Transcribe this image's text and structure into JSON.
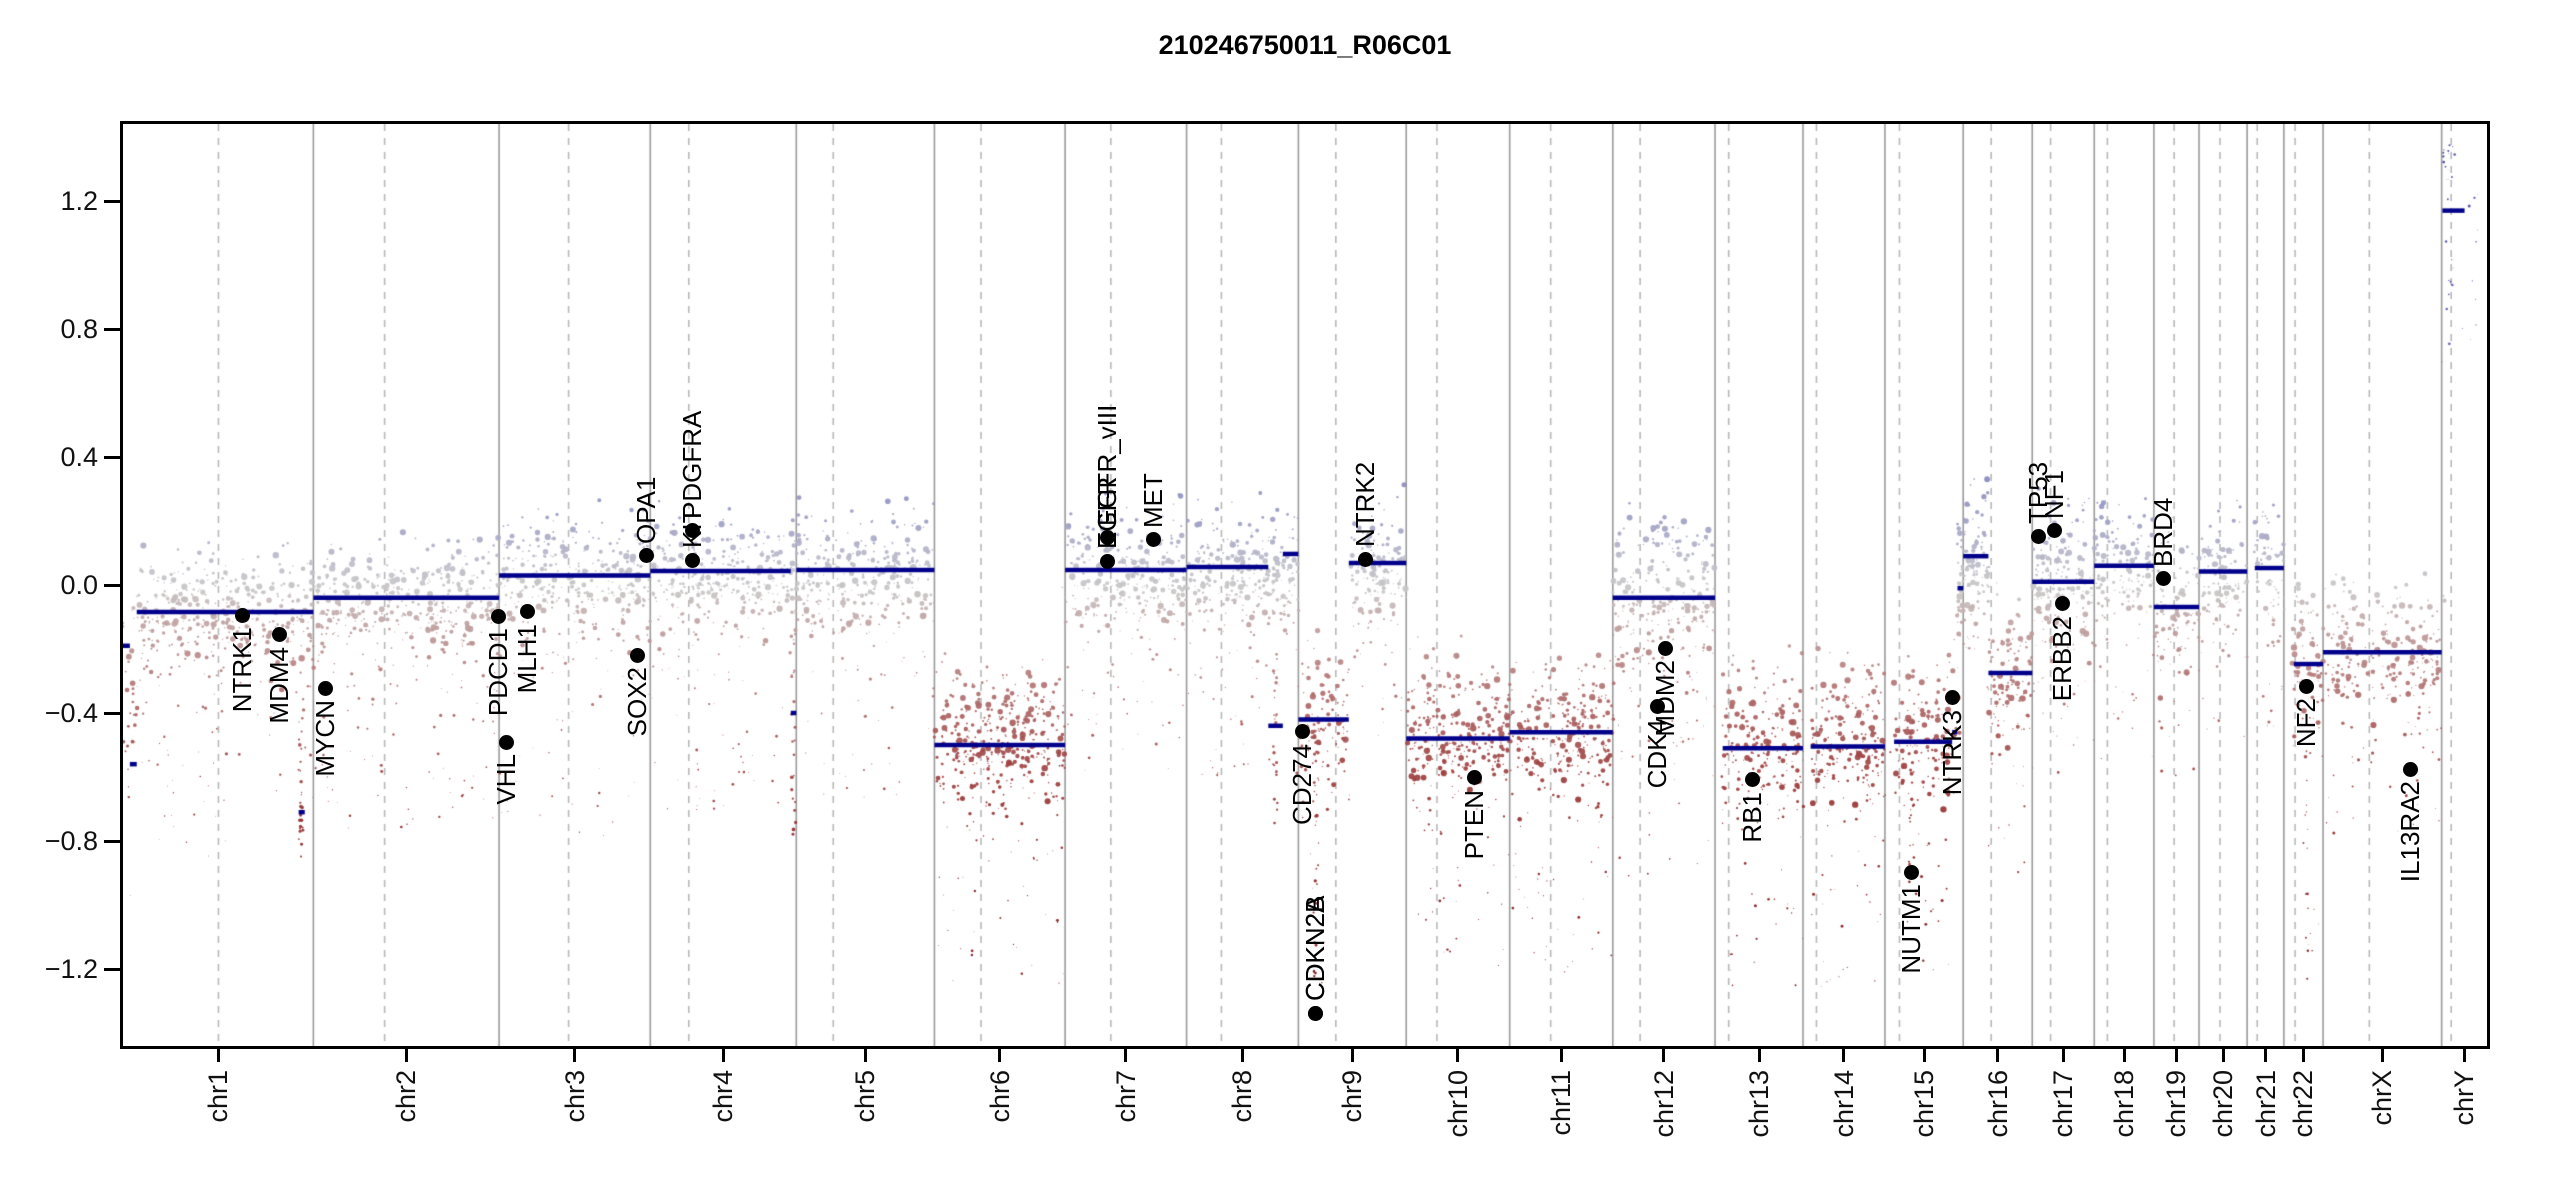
{
  "title": "210246750011_R06C01",
  "colors": {
    "segment": "#00008b",
    "gene_dot": "#000000",
    "boundary_line": "#9a9a9a",
    "centromere_line": "#b8b8b8",
    "plot_border": "#000000",
    "positive_point": "#8486bd",
    "neutral_point": "#c9c7c7",
    "negative_point": "#a04545",
    "deep_negative_point": "#7a1212"
  },
  "y_axis": {
    "ticks": [
      {
        "label": "1.2",
        "value": 1.2
      },
      {
        "label": "0.8",
        "value": 0.8
      },
      {
        "label": "0.4",
        "value": 0.4
      },
      {
        "label": "0.0",
        "value": 0.0
      },
      {
        "label": "-0.4",
        "value": -0.4
      },
      {
        "label": "-0.8",
        "value": -0.8
      },
      {
        "label": "-1.2",
        "value": -1.2
      }
    ],
    "range": [
      -1.44,
      1.44
    ]
  },
  "chart_data": {
    "type": "scatter",
    "title": "210246750011_R06C01",
    "xlabel": "",
    "ylabel": "",
    "ylim": [
      -1.44,
      1.44
    ],
    "grid": false,
    "legend": "none",
    "genome_total_mb": 3095.7,
    "chromosomes": [
      {
        "name": "chr1",
        "length_mb": 249.3,
        "centromere_mb": 125.0,
        "regions": [
          {
            "start_mb": 0,
            "end_mb": 18,
            "level": -0.3,
            "sd": 0.15,
            "up": 0.28,
            "down": 0.9,
            "density": 0.9
          },
          {
            "start_mb": 18,
            "end_mb": 249.3,
            "level": -0.07,
            "sd": 0.09,
            "up": 0.22,
            "down": 0.75,
            "density": 1.0
          }
        ]
      },
      {
        "name": "chr2",
        "length_mb": 243.2,
        "centromere_mb": 93.3,
        "regions": [
          {
            "start_mb": 0,
            "end_mb": 243.2,
            "level": -0.045,
            "sd": 0.09,
            "up": 0.22,
            "down": 0.7,
            "density": 1.0
          }
        ]
      },
      {
        "name": "chr3",
        "length_mb": 198.0,
        "centromere_mb": 91.0,
        "regions": [
          {
            "start_mb": 0,
            "end_mb": 198,
            "level": 0.035,
            "sd": 0.09,
            "up": 0.25,
            "down": 0.8,
            "density": 1.0
          }
        ]
      },
      {
        "name": "chr4",
        "length_mb": 191.2,
        "centromere_mb": 50.4,
        "regions": [
          {
            "start_mb": 0,
            "end_mb": 191.2,
            "level": 0.045,
            "sd": 0.09,
            "up": 0.25,
            "down": 0.75,
            "density": 1.0
          }
        ]
      },
      {
        "name": "chr5",
        "length_mb": 180.9,
        "centromere_mb": 48.4,
        "regions": [
          {
            "start_mb": 0,
            "end_mb": 180.9,
            "level": 0.047,
            "sd": 0.09,
            "up": 0.25,
            "down": 0.7,
            "density": 1.0
          }
        ]
      },
      {
        "name": "chr6",
        "length_mb": 171.1,
        "centromere_mb": 61.0,
        "regions": [
          {
            "start_mb": 0,
            "end_mb": 171.1,
            "level": -0.46,
            "sd": 0.1,
            "up": 0.3,
            "down": 0.75,
            "density": 1.3
          }
        ]
      },
      {
        "name": "chr7",
        "length_mb": 159.1,
        "centromere_mb": 59.9,
        "regions": [
          {
            "start_mb": 0,
            "end_mb": 159.1,
            "level": 0.05,
            "sd": 0.09,
            "up": 0.27,
            "down": 0.6,
            "density": 1.1
          }
        ]
      },
      {
        "name": "chr8",
        "length_mb": 146.4,
        "centromere_mb": 45.6,
        "regions": [
          {
            "start_mb": 0,
            "end_mb": 146.4,
            "level": 0.055,
            "sd": 0.09,
            "up": 0.25,
            "down": 0.65,
            "density": 1.1
          }
        ]
      },
      {
        "name": "chr9",
        "length_mb": 141.2,
        "centromere_mb": 49.0,
        "regions": [
          {
            "start_mb": 0,
            "end_mb": 66,
            "level": -0.41,
            "sd": 0.11,
            "up": 0.3,
            "down": 0.8,
            "density": 1.0
          },
          {
            "start_mb": 66,
            "end_mb": 141.2,
            "level": 0.07,
            "sd": 0.09,
            "up": 0.25,
            "down": 0.5,
            "density": 1.1
          }
        ]
      },
      {
        "name": "chr10",
        "length_mb": 135.5,
        "centromere_mb": 40.2,
        "regions": [
          {
            "start_mb": 0,
            "end_mb": 135.5,
            "level": -0.45,
            "sd": 0.11,
            "up": 0.3,
            "down": 0.7,
            "density": 1.2
          }
        ]
      },
      {
        "name": "chr11",
        "length_mb": 135.0,
        "centromere_mb": 53.7,
        "regions": [
          {
            "start_mb": 0,
            "end_mb": 135,
            "level": -0.44,
            "sd": 0.11,
            "up": 0.3,
            "down": 0.75,
            "density": 1.2
          }
        ]
      },
      {
        "name": "chr12",
        "length_mb": 133.9,
        "centromere_mb": 35.8,
        "regions": [
          {
            "start_mb": 0,
            "end_mb": 133.9,
            "level": -0.02,
            "sd": 0.13,
            "up": 0.3,
            "down": 0.85,
            "density": 1.2
          }
        ]
      },
      {
        "name": "chr13",
        "length_mb": 115.2,
        "centromere_mb": 17.9,
        "regions": [
          {
            "start_mb": 10,
            "end_mb": 115.2,
            "level": -0.47,
            "sd": 0.11,
            "up": 0.3,
            "down": 0.75,
            "density": 1.2
          }
        ]
      },
      {
        "name": "chr14",
        "length_mb": 107.3,
        "centromere_mb": 17.6,
        "regions": [
          {
            "start_mb": 10,
            "end_mb": 107.3,
            "level": -0.47,
            "sd": 0.11,
            "up": 0.3,
            "down": 0.75,
            "density": 1.2
          }
        ]
      },
      {
        "name": "chr15",
        "length_mb": 102.5,
        "centromere_mb": 19.0,
        "regions": [
          {
            "start_mb": 12,
            "end_mb": 95,
            "level": -0.46,
            "sd": 0.11,
            "up": 0.3,
            "down": 0.75,
            "density": 1.1
          },
          {
            "start_mb": 95,
            "end_mb": 102.5,
            "level": 0.0,
            "sd": 0.1,
            "up": 0.3,
            "down": 0.25,
            "density": 3.0
          }
        ]
      },
      {
        "name": "chr16",
        "length_mb": 90.4,
        "centromere_mb": 36.6,
        "regions": [
          {
            "start_mb": 0,
            "end_mb": 33,
            "level": 0.1,
            "sd": 0.1,
            "up": 0.25,
            "down": 0.35,
            "density": 1.6
          },
          {
            "start_mb": 33,
            "end_mb": 90.4,
            "level": -0.26,
            "sd": 0.1,
            "up": 0.28,
            "down": 0.6,
            "density": 1.1
          }
        ]
      },
      {
        "name": "chr17",
        "length_mb": 81.2,
        "centromere_mb": 24.0,
        "regions": [
          {
            "start_mb": 0,
            "end_mb": 81.2,
            "level": 0.03,
            "sd": 0.11,
            "up": 0.28,
            "down": 0.6,
            "density": 1.2
          }
        ]
      },
      {
        "name": "chr18",
        "length_mb": 78.1,
        "centromere_mb": 17.2,
        "regions": [
          {
            "start_mb": 0,
            "end_mb": 78.1,
            "level": 0.06,
            "sd": 0.09,
            "up": 0.24,
            "down": 0.6,
            "density": 1.0
          }
        ]
      },
      {
        "name": "chr19",
        "length_mb": 59.1,
        "centromere_mb": 26.5,
        "regions": [
          {
            "start_mb": 0,
            "end_mb": 59.1,
            "level": -0.05,
            "sd": 0.11,
            "up": 0.28,
            "down": 0.55,
            "density": 0.9
          }
        ]
      },
      {
        "name": "chr20",
        "length_mb": 63.0,
        "centromere_mb": 27.5,
        "regions": [
          {
            "start_mb": 0,
            "end_mb": 63,
            "level": 0.045,
            "sd": 0.09,
            "up": 0.24,
            "down": 0.5,
            "density": 1.0
          }
        ]
      },
      {
        "name": "chr21",
        "length_mb": 48.1,
        "centromere_mb": 13.2,
        "regions": [
          {
            "start_mb": 10,
            "end_mb": 48.1,
            "level": 0.055,
            "sd": 0.09,
            "up": 0.24,
            "down": 0.5,
            "density": 1.0
          }
        ]
      },
      {
        "name": "chr22",
        "length_mb": 51.3,
        "centromere_mb": 14.7,
        "regions": [
          {
            "start_mb": 13,
            "end_mb": 51.3,
            "level": -0.24,
            "sd": 0.11,
            "up": 0.26,
            "down": 0.9,
            "density": 1.1
          }
        ]
      },
      {
        "name": "chrX",
        "length_mb": 155.3,
        "centromere_mb": 60.6,
        "regions": [
          {
            "start_mb": 0,
            "end_mb": 155.3,
            "level": -0.2,
            "sd": 0.1,
            "up": 0.24,
            "down": 0.55,
            "density": 0.9
          }
        ]
      },
      {
        "name": "chrY",
        "length_mb": 59.4,
        "centromere_mb": 12.5,
        "regions": [
          {
            "start_mb": 1,
            "end_mb": 59,
            "level": 1.0,
            "sd": 0.18,
            "up": 0.3,
            "down": 0.3,
            "density": 0.18,
            "size": 0.55
          },
          {
            "start_mb": 1,
            "end_mb": 14,
            "level": 1.35,
            "sd": 0.02,
            "up": 0.04,
            "down": 0.05,
            "density": 0.6,
            "size": 0.5
          }
        ]
      }
    ],
    "segments": [
      {
        "chrom": "chr1",
        "start_mb": 0,
        "end_mb": 9,
        "value": -0.19
      },
      {
        "chrom": "chr1",
        "start_mb": 9,
        "end_mb": 18,
        "value": -0.56
      },
      {
        "chrom": "chr1",
        "start_mb": 18,
        "end_mb": 249.3,
        "value": -0.084
      },
      {
        "chrom": "chr1",
        "start_mb": 230,
        "end_mb": 238,
        "value": -0.71
      },
      {
        "chrom": "chr2",
        "start_mb": 0,
        "end_mb": 243.2,
        "value": -0.04
      },
      {
        "chrom": "chr3",
        "start_mb": 0,
        "end_mb": 198,
        "value": 0.03
      },
      {
        "chrom": "chr4",
        "start_mb": 0,
        "end_mb": 184,
        "value": 0.044
      },
      {
        "chrom": "chr4",
        "start_mb": 184,
        "end_mb": 191.2,
        "value": -0.4
      },
      {
        "chrom": "chr5",
        "start_mb": 0,
        "end_mb": 180.9,
        "value": 0.047
      },
      {
        "chrom": "chr6",
        "start_mb": 0,
        "end_mb": 171.1,
        "value": -0.5
      },
      {
        "chrom": "chr7",
        "start_mb": 0,
        "end_mb": 159.1,
        "value": 0.047
      },
      {
        "chrom": "chr8",
        "start_mb": 0,
        "end_mb": 107,
        "value": 0.056
      },
      {
        "chrom": "chr8",
        "start_mb": 107,
        "end_mb": 126,
        "value": -0.44
      },
      {
        "chrom": "chr8",
        "start_mb": 126,
        "end_mb": 146.4,
        "value": 0.097
      },
      {
        "chrom": "chr9",
        "start_mb": 0,
        "end_mb": 66,
        "value": -0.42
      },
      {
        "chrom": "chr9",
        "start_mb": 66,
        "end_mb": 141.2,
        "value": 0.069
      },
      {
        "chrom": "chr10",
        "start_mb": 0,
        "end_mb": 135.5,
        "value": -0.48
      },
      {
        "chrom": "chr11",
        "start_mb": 0,
        "end_mb": 135,
        "value": -0.46
      },
      {
        "chrom": "chr12",
        "start_mb": 0,
        "end_mb": 133.9,
        "value": -0.04
      },
      {
        "chrom": "chr13",
        "start_mb": 10,
        "end_mb": 115.2,
        "value": -0.51
      },
      {
        "chrom": "chr14",
        "start_mb": 10,
        "end_mb": 107.3,
        "value": -0.505
      },
      {
        "chrom": "chr15",
        "start_mb": 12,
        "end_mb": 88,
        "value": -0.49
      },
      {
        "chrom": "chr15",
        "start_mb": 88,
        "end_mb": 95,
        "value": -0.46
      },
      {
        "chrom": "chr15",
        "start_mb": 95,
        "end_mb": 102.5,
        "value": -0.01
      },
      {
        "chrom": "chr16",
        "start_mb": 0,
        "end_mb": 33,
        "value": 0.09
      },
      {
        "chrom": "chr16",
        "start_mb": 33,
        "end_mb": 90.4,
        "value": -0.275
      },
      {
        "chrom": "chr17",
        "start_mb": 0,
        "end_mb": 81.2,
        "value": 0.01
      },
      {
        "chrom": "chr18",
        "start_mb": 0,
        "end_mb": 78.1,
        "value": 0.06
      },
      {
        "chrom": "chr19",
        "start_mb": 0,
        "end_mb": 59.1,
        "value": -0.069
      },
      {
        "chrom": "chr20",
        "start_mb": 0,
        "end_mb": 63,
        "value": 0.042
      },
      {
        "chrom": "chr21",
        "start_mb": 10,
        "end_mb": 48.1,
        "value": 0.053
      },
      {
        "chrom": "chr22",
        "start_mb": 13,
        "end_mb": 51.3,
        "value": -0.247
      },
      {
        "chrom": "chrX",
        "start_mb": 0,
        "end_mb": 155.3,
        "value": -0.21
      },
      {
        "chrom": "chrY",
        "start_mb": 1,
        "end_mb": 30,
        "value": 1.17
      }
    ],
    "deep_streaks": [
      {
        "chrom": "chr1",
        "mb": 233,
        "from": -0.35,
        "to": -0.85,
        "n": 30
      },
      {
        "chrom": "chr4",
        "mb": 187,
        "from": -0.15,
        "to": -0.78,
        "n": 26
      },
      {
        "chrom": "chr8",
        "mb": 116,
        "from": -0.2,
        "to": -0.75,
        "n": 24
      },
      {
        "chrom": "chr9",
        "mb": 22,
        "from": -0.45,
        "to": -1.35,
        "n": 26
      },
      {
        "chrom": "chr15",
        "mb": 34.6,
        "from": -0.55,
        "to": -0.95,
        "n": 14
      },
      {
        "chrom": "chr22",
        "mb": 30,
        "from": -0.5,
        "to": -1.25,
        "n": 12
      }
    ],
    "genes": [
      {
        "label": "NTRK1",
        "chrom": "chr1",
        "mb": 156.8,
        "value": -0.094,
        "side": "below"
      },
      {
        "label": "MDM4",
        "chrom": "chr1",
        "mb": 204.5,
        "value": -0.156,
        "side": "below"
      },
      {
        "label": "MYCN",
        "chrom": "chr2",
        "mb": 16.1,
        "value": -0.322,
        "side": "below"
      },
      {
        "label": "PDCD1",
        "chrom": "chr2",
        "mb": 242.0,
        "value": -0.097,
        "side": "below"
      },
      {
        "label": "VHL",
        "chrom": "chr3",
        "mb": 10.2,
        "value": -0.491,
        "side": "below"
      },
      {
        "label": "MLH1",
        "chrom": "chr3",
        "mb": 37.0,
        "value": -0.084,
        "side": "below"
      },
      {
        "label": "SOX2",
        "chrom": "chr3",
        "mb": 181.4,
        "value": -0.219,
        "side": "below"
      },
      {
        "label": "OPA1",
        "chrom": "chr3",
        "mb": 193.3,
        "value": 0.091,
        "side": "above"
      },
      {
        "label": "PDGFRA",
        "chrom": "chr4",
        "mb": 55.1,
        "value": 0.169,
        "side": "above"
      },
      {
        "label": "KIT",
        "chrom": "chr4",
        "mb": 55.6,
        "value": 0.078,
        "side": "above"
      },
      {
        "label": "EGFR_vIII",
        "chrom": "chr7",
        "mb": 55.0,
        "value": 0.147,
        "side": "above"
      },
      {
        "label": "EGFR",
        "chrom": "chr7",
        "mb": 55.4,
        "value": 0.075,
        "side": "above"
      },
      {
        "label": "MET",
        "chrom": "chr7",
        "mb": 116.3,
        "value": 0.141,
        "side": "above"
      },
      {
        "label": "CD274",
        "chrom": "chr9",
        "mb": 5.5,
        "value": -0.459,
        "side": "below"
      },
      {
        "label": "CDKN2A",
        "chrom": "chr9",
        "mb": 21.9,
        "value": -1.338,
        "side": "above"
      },
      {
        "label": "CDKN2B",
        "chrom": "chr9",
        "mb": 22.3,
        "value": -1.338,
        "side": "above"
      },
      {
        "label": "NTRK2",
        "chrom": "chr9",
        "mb": 87.3,
        "value": 0.081,
        "side": "above"
      },
      {
        "label": "PTEN",
        "chrom": "chr10",
        "mb": 89.6,
        "value": -0.603,
        "side": "below"
      },
      {
        "label": "CDK4",
        "chrom": "chr12",
        "mb": 58.1,
        "value": -0.381,
        "side": "below"
      },
      {
        "label": "MDM2",
        "chrom": "chr12",
        "mb": 69.2,
        "value": -0.197,
        "side": "below"
      },
      {
        "label": "RB1",
        "chrom": "chr13",
        "mb": 48.9,
        "value": -0.609,
        "side": "below"
      },
      {
        "label": "NUTM1",
        "chrom": "chr15",
        "mb": 34.6,
        "value": -0.897,
        "side": "below"
      },
      {
        "label": "NTRK3",
        "chrom": "chr15",
        "mb": 88.4,
        "value": -0.353,
        "side": "below"
      },
      {
        "label": "TP53",
        "chrom": "chr17",
        "mb": 7.6,
        "value": 0.153,
        "side": "above"
      },
      {
        "label": "NF1",
        "chrom": "chr17",
        "mb": 29.5,
        "value": 0.169,
        "side": "above"
      },
      {
        "label": "ERBB2",
        "chrom": "chr17",
        "mb": 39.7,
        "value": -0.059,
        "side": "below"
      },
      {
        "label": "BRD4",
        "chrom": "chr19",
        "mb": 13.2,
        "value": 0.019,
        "side": "above"
      },
      {
        "label": "NF2",
        "chrom": "chr22",
        "mb": 30.0,
        "value": -0.316,
        "side": "below"
      },
      {
        "label": "IL13RA2",
        "chrom": "chrX",
        "mb": 114.2,
        "value": -0.575,
        "side": "below"
      }
    ]
  }
}
